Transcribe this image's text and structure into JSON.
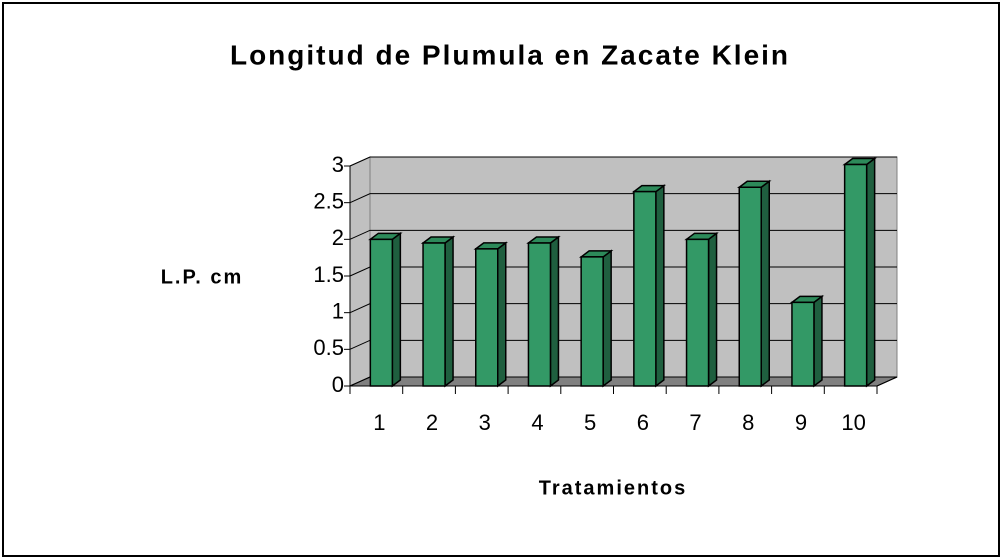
{
  "chart_data": {
    "type": "bar3d",
    "title": "Longitud de Plumula en Zacate Klein",
    "x_label": "Tratamientos",
    "y_label": "L.P. cm",
    "categories": [
      "1",
      "2",
      "3",
      "4",
      "5",
      "6",
      "7",
      "8",
      "9",
      "10"
    ],
    "values": [
      2.0,
      1.95,
      1.87,
      1.95,
      1.76,
      2.65,
      2.0,
      2.71,
      1.14,
      3.02
    ],
    "color": "#339966",
    "ylim": [
      0,
      3
    ],
    "yticks": [
      0,
      0.5,
      1,
      1.5,
      2,
      2.5,
      3
    ],
    "grid": true
  }
}
